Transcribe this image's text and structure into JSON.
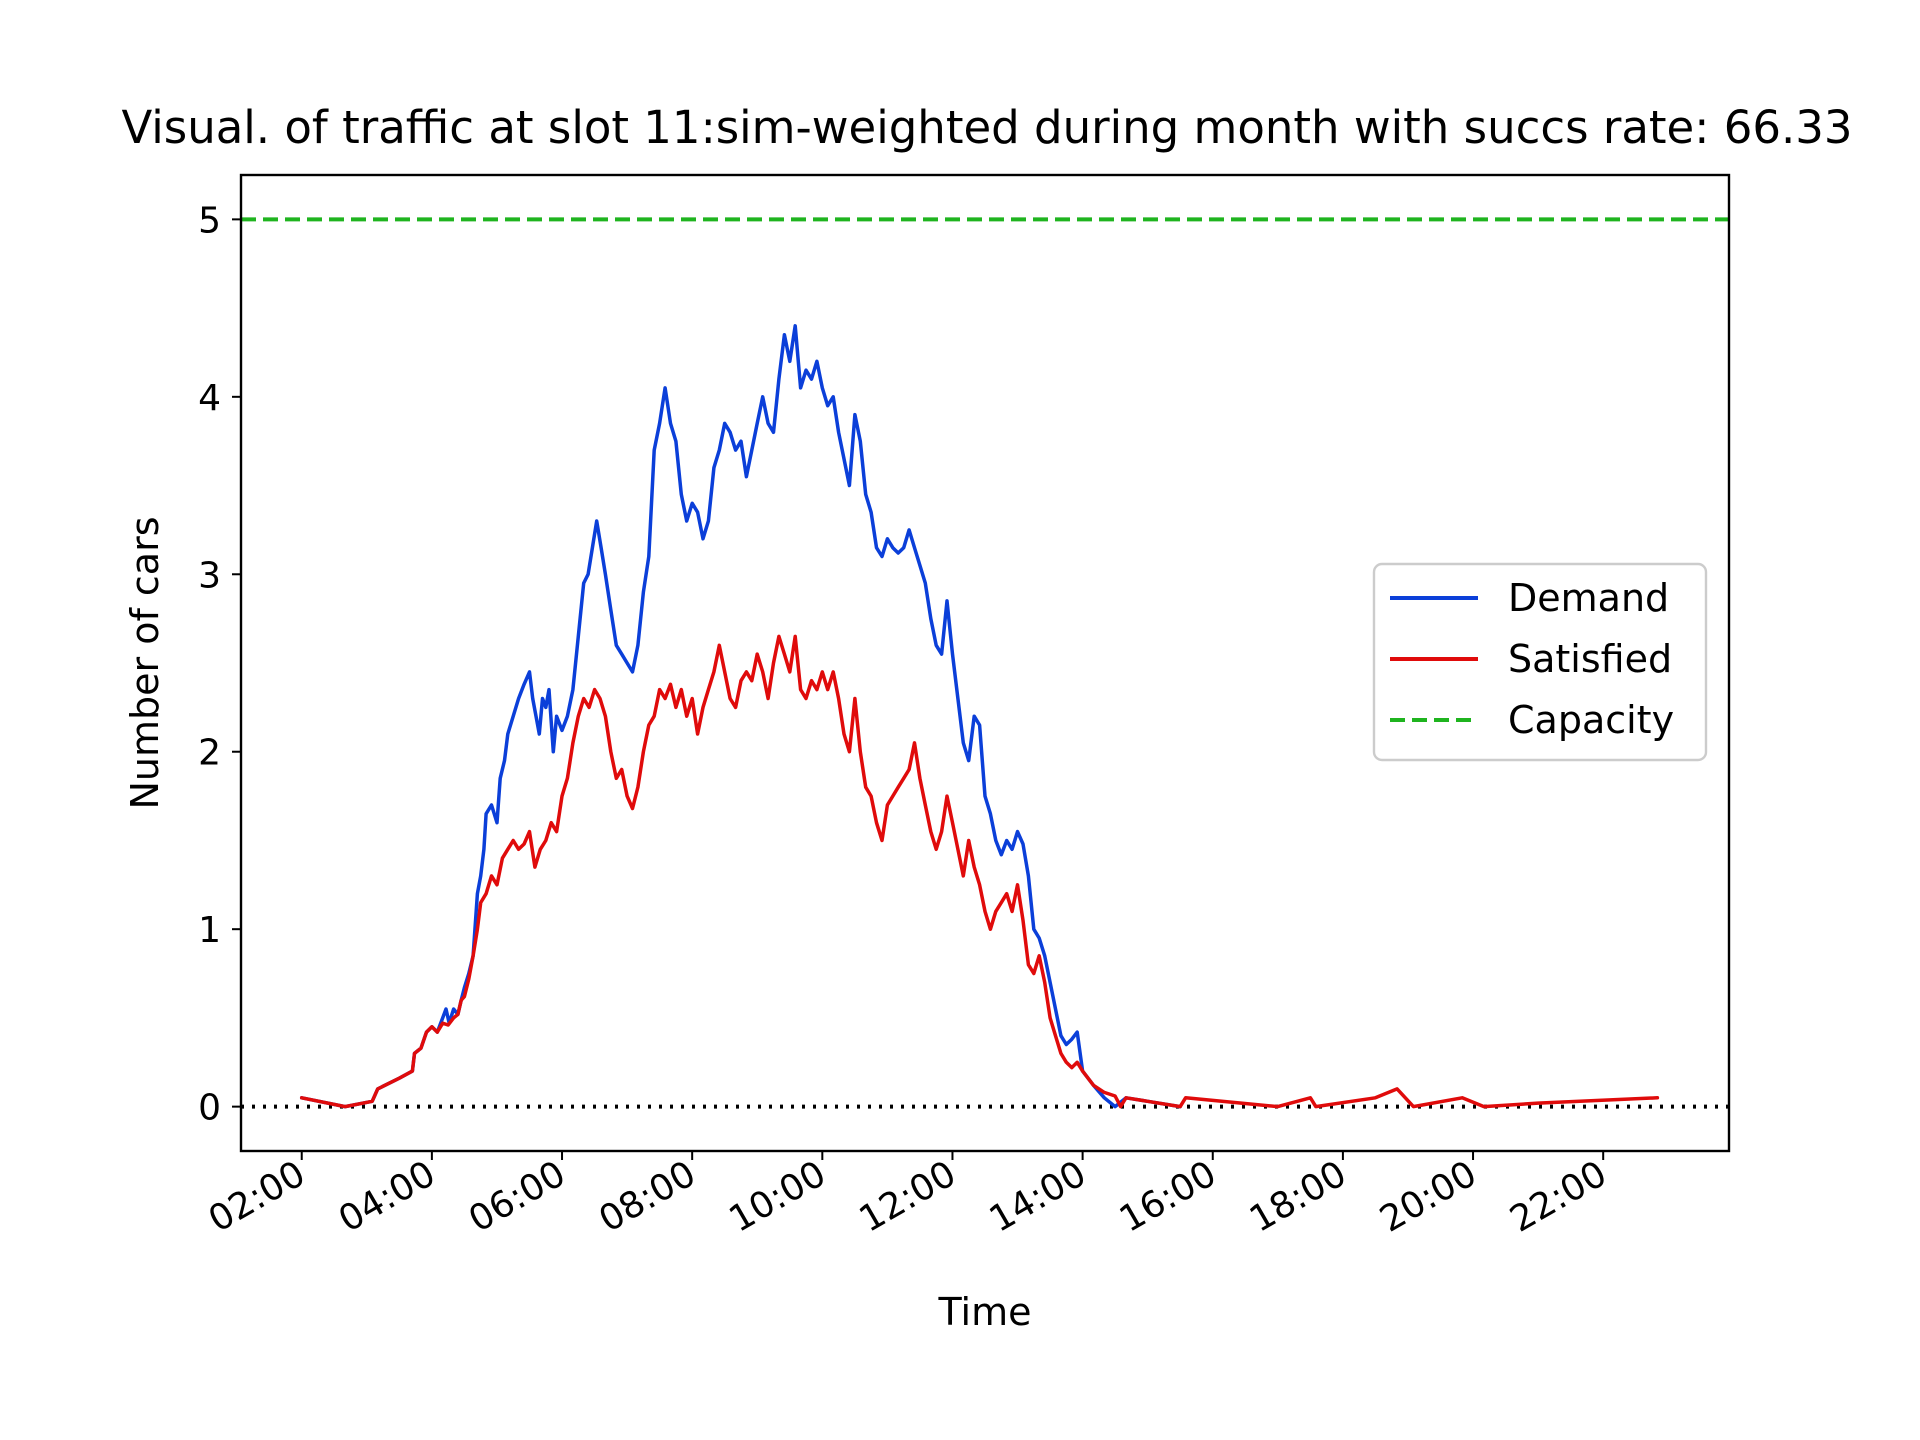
{
  "chart_data": {
    "type": "line",
    "title": "Visual. of traffic at slot 11:sim-weighted during month with succs rate: 66.33",
    "xlabel": "Time",
    "ylabel": "Number of cars",
    "xlim": [
      "01:04",
      "23:56"
    ],
    "ylim": [
      -0.25,
      5.25
    ],
    "x_ticks": [
      "02:00",
      "04:00",
      "06:00",
      "08:00",
      "10:00",
      "12:00",
      "14:00",
      "16:00",
      "18:00",
      "20:00",
      "22:00"
    ],
    "y_ticks": [
      "0",
      "1",
      "2",
      "3",
      "4",
      "5"
    ],
    "grid": false,
    "legend_position": "center-right",
    "series": [
      {
        "name": "Demand",
        "color": "#0b3fd9",
        "style": "solid",
        "points": [
          [
            "02:00",
            0.05
          ],
          [
            "02:40",
            0.0
          ],
          [
            "03:05",
            0.03
          ],
          [
            "03:10",
            0.1
          ],
          [
            "03:30",
            0.16
          ],
          [
            "03:42",
            0.2
          ],
          [
            "03:44",
            0.3
          ],
          [
            "03:50",
            0.33
          ],
          [
            "03:55",
            0.42
          ],
          [
            "04:00",
            0.45
          ],
          [
            "04:05",
            0.42
          ],
          [
            "04:10",
            0.5
          ],
          [
            "04:13",
            0.55
          ],
          [
            "04:16",
            0.47
          ],
          [
            "04:20",
            0.55
          ],
          [
            "04:24",
            0.52
          ],
          [
            "04:27",
            0.6
          ],
          [
            "04:30",
            0.67
          ],
          [
            "04:34",
            0.75
          ],
          [
            "04:38",
            0.85
          ],
          [
            "04:42",
            1.2
          ],
          [
            "04:45",
            1.3
          ],
          [
            "04:48",
            1.45
          ],
          [
            "04:50",
            1.65
          ],
          [
            "04:55",
            1.7
          ],
          [
            "05:00",
            1.6
          ],
          [
            "05:03",
            1.85
          ],
          [
            "05:07",
            1.95
          ],
          [
            "05:10",
            2.1
          ],
          [
            "05:15",
            2.2
          ],
          [
            "05:20",
            2.3
          ],
          [
            "05:25",
            2.38
          ],
          [
            "05:30",
            2.45
          ],
          [
            "05:33",
            2.3
          ],
          [
            "05:36",
            2.2
          ],
          [
            "05:39",
            2.1
          ],
          [
            "05:42",
            2.3
          ],
          [
            "05:45",
            2.25
          ],
          [
            "05:48",
            2.35
          ],
          [
            "05:52",
            2.0
          ],
          [
            "05:55",
            2.2
          ],
          [
            "06:00",
            2.12
          ],
          [
            "06:05",
            2.2
          ],
          [
            "06:10",
            2.35
          ],
          [
            "06:15",
            2.65
          ],
          [
            "06:20",
            2.95
          ],
          [
            "06:24",
            3.0
          ],
          [
            "06:28",
            3.15
          ],
          [
            "06:32",
            3.3
          ],
          [
            "06:36",
            3.15
          ],
          [
            "06:40",
            3.0
          ],
          [
            "06:45",
            2.8
          ],
          [
            "06:50",
            2.6
          ],
          [
            "06:55",
            2.55
          ],
          [
            "07:00",
            2.5
          ],
          [
            "07:05",
            2.45
          ],
          [
            "07:10",
            2.6
          ],
          [
            "07:15",
            2.9
          ],
          [
            "07:20",
            3.1
          ],
          [
            "07:25",
            3.7
          ],
          [
            "07:30",
            3.85
          ],
          [
            "07:35",
            4.05
          ],
          [
            "07:40",
            3.85
          ],
          [
            "07:45",
            3.75
          ],
          [
            "07:50",
            3.45
          ],
          [
            "07:55",
            3.3
          ],
          [
            "08:00",
            3.4
          ],
          [
            "08:05",
            3.35
          ],
          [
            "08:10",
            3.2
          ],
          [
            "08:15",
            3.3
          ],
          [
            "08:20",
            3.6
          ],
          [
            "08:25",
            3.7
          ],
          [
            "08:30",
            3.85
          ],
          [
            "08:35",
            3.8
          ],
          [
            "08:40",
            3.7
          ],
          [
            "08:45",
            3.75
          ],
          [
            "08:50",
            3.55
          ],
          [
            "08:55",
            3.7
          ],
          [
            "09:00",
            3.85
          ],
          [
            "09:05",
            4.0
          ],
          [
            "09:10",
            3.85
          ],
          [
            "09:15",
            3.8
          ],
          [
            "09:20",
            4.1
          ],
          [
            "09:25",
            4.35
          ],
          [
            "09:30",
            4.2
          ],
          [
            "09:35",
            4.4
          ],
          [
            "09:40",
            4.05
          ],
          [
            "09:45",
            4.15
          ],
          [
            "09:50",
            4.1
          ],
          [
            "09:55",
            4.2
          ],
          [
            "10:00",
            4.05
          ],
          [
            "10:05",
            3.95
          ],
          [
            "10:10",
            4.0
          ],
          [
            "10:15",
            3.8
          ],
          [
            "10:20",
            3.65
          ],
          [
            "10:25",
            3.5
          ],
          [
            "10:30",
            3.9
          ],
          [
            "10:35",
            3.75
          ],
          [
            "10:40",
            3.45
          ],
          [
            "10:45",
            3.35
          ],
          [
            "10:50",
            3.15
          ],
          [
            "10:55",
            3.1
          ],
          [
            "11:00",
            3.2
          ],
          [
            "11:05",
            3.15
          ],
          [
            "11:10",
            3.12
          ],
          [
            "11:15",
            3.15
          ],
          [
            "11:20",
            3.25
          ],
          [
            "11:25",
            3.15
          ],
          [
            "11:30",
            3.05
          ],
          [
            "11:35",
            2.95
          ],
          [
            "11:40",
            2.75
          ],
          [
            "11:45",
            2.6
          ],
          [
            "11:50",
            2.55
          ],
          [
            "11:55",
            2.85
          ],
          [
            "12:00",
            2.55
          ],
          [
            "12:05",
            2.3
          ],
          [
            "12:10",
            2.05
          ],
          [
            "12:15",
            1.95
          ],
          [
            "12:20",
            2.2
          ],
          [
            "12:25",
            2.15
          ],
          [
            "12:30",
            1.75
          ],
          [
            "12:35",
            1.65
          ],
          [
            "12:40",
            1.5
          ],
          [
            "12:45",
            1.42
          ],
          [
            "12:50",
            1.5
          ],
          [
            "12:55",
            1.45
          ],
          [
            "13:00",
            1.55
          ],
          [
            "13:05",
            1.48
          ],
          [
            "13:10",
            1.3
          ],
          [
            "13:15",
            1.0
          ],
          [
            "13:20",
            0.95
          ],
          [
            "13:25",
            0.85
          ],
          [
            "13:30",
            0.7
          ],
          [
            "13:35",
            0.55
          ],
          [
            "13:40",
            0.4
          ],
          [
            "13:45",
            0.35
          ],
          [
            "13:50",
            0.38
          ],
          [
            "13:55",
            0.42
          ],
          [
            "14:00",
            0.2
          ],
          [
            "14:10",
            0.12
          ],
          [
            "14:20",
            0.05
          ],
          [
            "14:30",
            0.0
          ],
          [
            "14:40",
            0.05
          ],
          [
            "15:00",
            0.03
          ],
          [
            "15:30",
            0.0
          ]
        ]
      },
      {
        "name": "Satisfied",
        "color": "#e00b0b",
        "style": "solid",
        "points": [
          [
            "02:00",
            0.05
          ],
          [
            "02:40",
            0.0
          ],
          [
            "03:05",
            0.03
          ],
          [
            "03:10",
            0.1
          ],
          [
            "03:30",
            0.16
          ],
          [
            "03:42",
            0.2
          ],
          [
            "03:44",
            0.3
          ],
          [
            "03:50",
            0.33
          ],
          [
            "03:55",
            0.42
          ],
          [
            "04:00",
            0.45
          ],
          [
            "04:05",
            0.42
          ],
          [
            "04:10",
            0.47
          ],
          [
            "04:15",
            0.46
          ],
          [
            "04:20",
            0.5
          ],
          [
            "04:24",
            0.52
          ],
          [
            "04:27",
            0.6
          ],
          [
            "04:30",
            0.62
          ],
          [
            "04:34",
            0.72
          ],
          [
            "04:38",
            0.85
          ],
          [
            "04:42",
            1.0
          ],
          [
            "04:45",
            1.15
          ],
          [
            "04:50",
            1.2
          ],
          [
            "04:55",
            1.3
          ],
          [
            "05:00",
            1.25
          ],
          [
            "05:05",
            1.4
          ],
          [
            "05:10",
            1.45
          ],
          [
            "05:15",
            1.5
          ],
          [
            "05:20",
            1.45
          ],
          [
            "05:25",
            1.48
          ],
          [
            "05:30",
            1.55
          ],
          [
            "05:35",
            1.35
          ],
          [
            "05:40",
            1.45
          ],
          [
            "05:45",
            1.5
          ],
          [
            "05:50",
            1.6
          ],
          [
            "05:55",
            1.55
          ],
          [
            "06:00",
            1.75
          ],
          [
            "06:05",
            1.85
          ],
          [
            "06:10",
            2.05
          ],
          [
            "06:15",
            2.2
          ],
          [
            "06:20",
            2.3
          ],
          [
            "06:25",
            2.25
          ],
          [
            "06:30",
            2.35
          ],
          [
            "06:35",
            2.3
          ],
          [
            "06:40",
            2.2
          ],
          [
            "06:45",
            2.0
          ],
          [
            "06:50",
            1.85
          ],
          [
            "06:55",
            1.9
          ],
          [
            "07:00",
            1.75
          ],
          [
            "07:05",
            1.68
          ],
          [
            "07:10",
            1.8
          ],
          [
            "07:15",
            2.0
          ],
          [
            "07:20",
            2.15
          ],
          [
            "07:25",
            2.2
          ],
          [
            "07:30",
            2.35
          ],
          [
            "07:35",
            2.3
          ],
          [
            "07:40",
            2.38
          ],
          [
            "07:45",
            2.25
          ],
          [
            "07:50",
            2.35
          ],
          [
            "07:55",
            2.2
          ],
          [
            "08:00",
            2.3
          ],
          [
            "08:05",
            2.1
          ],
          [
            "08:10",
            2.25
          ],
          [
            "08:15",
            2.35
          ],
          [
            "08:20",
            2.45
          ],
          [
            "08:25",
            2.6
          ],
          [
            "08:30",
            2.45
          ],
          [
            "08:35",
            2.3
          ],
          [
            "08:40",
            2.25
          ],
          [
            "08:45",
            2.4
          ],
          [
            "08:50",
            2.45
          ],
          [
            "08:55",
            2.4
          ],
          [
            "09:00",
            2.55
          ],
          [
            "09:05",
            2.45
          ],
          [
            "09:10",
            2.3
          ],
          [
            "09:15",
            2.5
          ],
          [
            "09:20",
            2.65
          ],
          [
            "09:25",
            2.55
          ],
          [
            "09:30",
            2.45
          ],
          [
            "09:35",
            2.65
          ],
          [
            "09:40",
            2.35
          ],
          [
            "09:45",
            2.3
          ],
          [
            "09:50",
            2.4
          ],
          [
            "09:55",
            2.35
          ],
          [
            "10:00",
            2.45
          ],
          [
            "10:05",
            2.35
          ],
          [
            "10:10",
            2.45
          ],
          [
            "10:15",
            2.3
          ],
          [
            "10:20",
            2.1
          ],
          [
            "10:25",
            2.0
          ],
          [
            "10:30",
            2.3
          ],
          [
            "10:35",
            2.0
          ],
          [
            "10:40",
            1.8
          ],
          [
            "10:45",
            1.75
          ],
          [
            "10:50",
            1.6
          ],
          [
            "10:55",
            1.5
          ],
          [
            "11:00",
            1.7
          ],
          [
            "11:05",
            1.75
          ],
          [
            "11:10",
            1.8
          ],
          [
            "11:15",
            1.85
          ],
          [
            "11:20",
            1.9
          ],
          [
            "11:25",
            2.05
          ],
          [
            "11:30",
            1.85
          ],
          [
            "11:35",
            1.7
          ],
          [
            "11:40",
            1.55
          ],
          [
            "11:45",
            1.45
          ],
          [
            "11:50",
            1.55
          ],
          [
            "11:55",
            1.75
          ],
          [
            "12:00",
            1.6
          ],
          [
            "12:05",
            1.45
          ],
          [
            "12:10",
            1.3
          ],
          [
            "12:15",
            1.5
          ],
          [
            "12:20",
            1.35
          ],
          [
            "12:25",
            1.25
          ],
          [
            "12:30",
            1.1
          ],
          [
            "12:35",
            1.0
          ],
          [
            "12:40",
            1.1
          ],
          [
            "12:45",
            1.15
          ],
          [
            "12:50",
            1.2
          ],
          [
            "12:55",
            1.1
          ],
          [
            "13:00",
            1.25
          ],
          [
            "13:05",
            1.05
          ],
          [
            "13:10",
            0.8
          ],
          [
            "13:15",
            0.75
          ],
          [
            "13:20",
            0.85
          ],
          [
            "13:25",
            0.7
          ],
          [
            "13:30",
            0.5
          ],
          [
            "13:35",
            0.4
          ],
          [
            "13:40",
            0.3
          ],
          [
            "13:45",
            0.25
          ],
          [
            "13:50",
            0.22
          ],
          [
            "13:55",
            0.25
          ],
          [
            "14:00",
            0.2
          ],
          [
            "14:10",
            0.12
          ],
          [
            "14:20",
            0.08
          ],
          [
            "14:30",
            0.06
          ],
          [
            "14:35",
            0.0
          ],
          [
            "14:40",
            0.05
          ],
          [
            "15:00",
            0.03
          ],
          [
            "15:30",
            0.0
          ],
          [
            "15:35",
            0.05
          ],
          [
            "17:00",
            0.0
          ],
          [
            "17:30",
            0.05
          ],
          [
            "17:35",
            0.0
          ],
          [
            "18:30",
            0.05
          ],
          [
            "18:50",
            0.1
          ],
          [
            "19:05",
            0.0
          ],
          [
            "19:50",
            0.05
          ],
          [
            "20:10",
            0.0
          ],
          [
            "21:00",
            0.02
          ],
          [
            "22:50",
            0.05
          ]
        ]
      }
    ],
    "hlines": [
      {
        "name": "Capacity",
        "y": 5,
        "color": "#1fb41f",
        "style": "dashed"
      },
      {
        "name": "",
        "y": 0,
        "color": "#000000",
        "style": "dotted"
      }
    ]
  }
}
